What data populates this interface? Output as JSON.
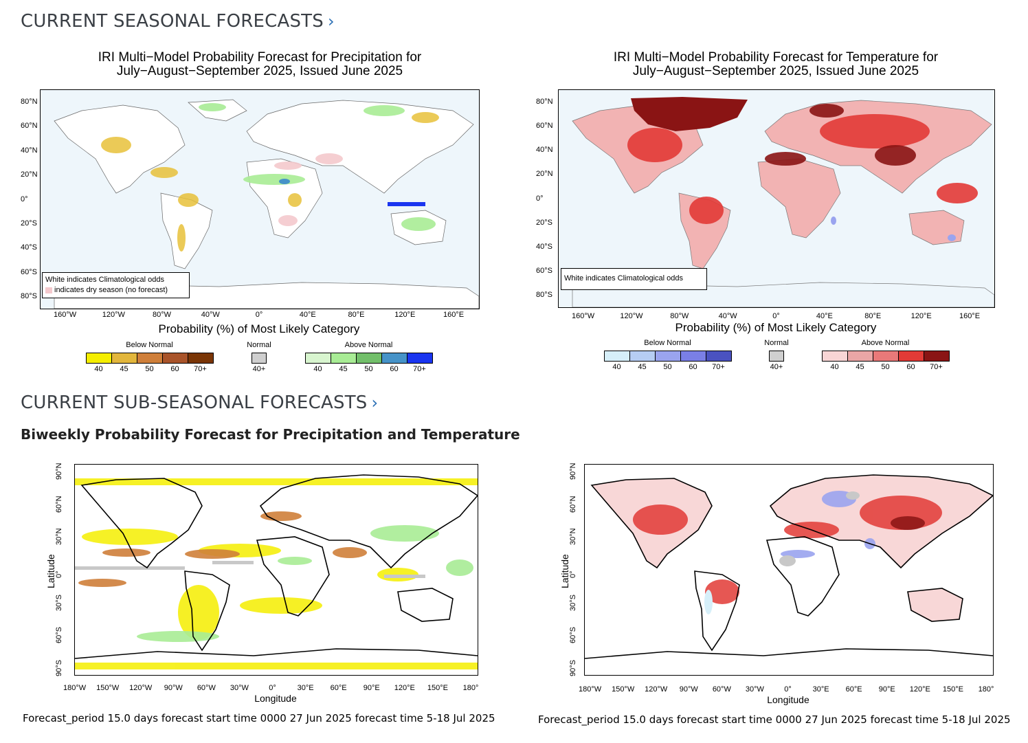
{
  "seasonal": {
    "heading": "CURRENT SEASONAL FORECASTS",
    "chevron": "›",
    "precip": {
      "title_line1": "IRI Multi−Model Probability Forecast for Precipitation for",
      "title_line2": "July−August−September 2025, Issued June 2025",
      "lat_ticks": [
        "80°N",
        "60°N",
        "40°N",
        "20°N",
        "0°",
        "20°S",
        "40°S",
        "60°S",
        "80°S"
      ],
      "lon_ticks": [
        "160°W",
        "120°W",
        "80°W",
        "40°W",
        "0°",
        "40°E",
        "80°E",
        "120°E",
        "160°E"
      ],
      "legend_line1": "White indicates Climatological odds",
      "legend_line2": "indicates dry season (no forecast)",
      "xlabel": "Probability (%) of Most Likely Category",
      "below_title": "Below Normal",
      "normal_title": "Normal",
      "above_title": "Above Normal",
      "below_colors": [
        "#f5ee00",
        "#e2b63c",
        "#cf7f3a",
        "#a9542a",
        "#7a3506"
      ],
      "normal_color": "#cfcfcf",
      "above_colors": [
        "#d8f5cf",
        "#a8ec95",
        "#72bf6a",
        "#4693c8",
        "#1a35f0"
      ],
      "below_labels": [
        "40",
        "45",
        "50",
        "60",
        "70+"
      ],
      "normal_labels": [
        "40+"
      ],
      "above_labels": [
        "40",
        "45",
        "50",
        "60",
        "70+"
      ]
    },
    "temp": {
      "title_line1": "IRI Multi−Model Probability Forecast for Temperature for",
      "title_line2": "July−August−September 2025, Issued June 2025",
      "lat_ticks": [
        "80°N",
        "60°N",
        "40°N",
        "20°N",
        "0°",
        "20°S",
        "40°S",
        "60°S",
        "80°S"
      ],
      "lon_ticks": [
        "160°W",
        "120°W",
        "80°W",
        "40°W",
        "0°",
        "40°E",
        "80°E",
        "120°E",
        "160°E"
      ],
      "legend_line1": "White indicates Climatological odds",
      "xlabel": "Probability (%) of Most Likely Category",
      "below_title": "Below Normal",
      "normal_title": "Normal",
      "above_title": "Above Normal",
      "below_colors": [
        "#d6eff9",
        "#b6cdf3",
        "#9aa4ef",
        "#7a7fe6",
        "#4a52c0"
      ],
      "normal_color": "#cfcfcf",
      "above_colors": [
        "#f8d5d5",
        "#eaa6a6",
        "#e97979",
        "#e23a36",
        "#8a1414"
      ],
      "below_labels": [
        "40",
        "45",
        "50",
        "60",
        "70+"
      ],
      "normal_labels": [
        "40+"
      ],
      "above_labels": [
        "40",
        "45",
        "50",
        "60",
        "70+"
      ]
    }
  },
  "subseasonal": {
    "heading": "CURRENT SUB-SEASONAL FORECASTS",
    "chevron": "›",
    "subheading": "Biweekly Probability Forecast for Precipitation and Temperature",
    "lat_ticks": [
      "90°N",
      "60°N",
      "30°N",
      "0°",
      "30°S",
      "60°S",
      "90°S"
    ],
    "lon_ticks": [
      "180°W",
      "150°W",
      "120°W",
      "90°W",
      "60°W",
      "30°W",
      "0°",
      "30°E",
      "60°E",
      "90°E",
      "120°E",
      "150°E",
      "180°"
    ],
    "ylabel": "Latitude",
    "xlabel": "Longitude",
    "caption": "Forecast_period 15.0 days forecast start time 0000 27 Jun 2025 forecast time 5-18 Jul 2025"
  }
}
